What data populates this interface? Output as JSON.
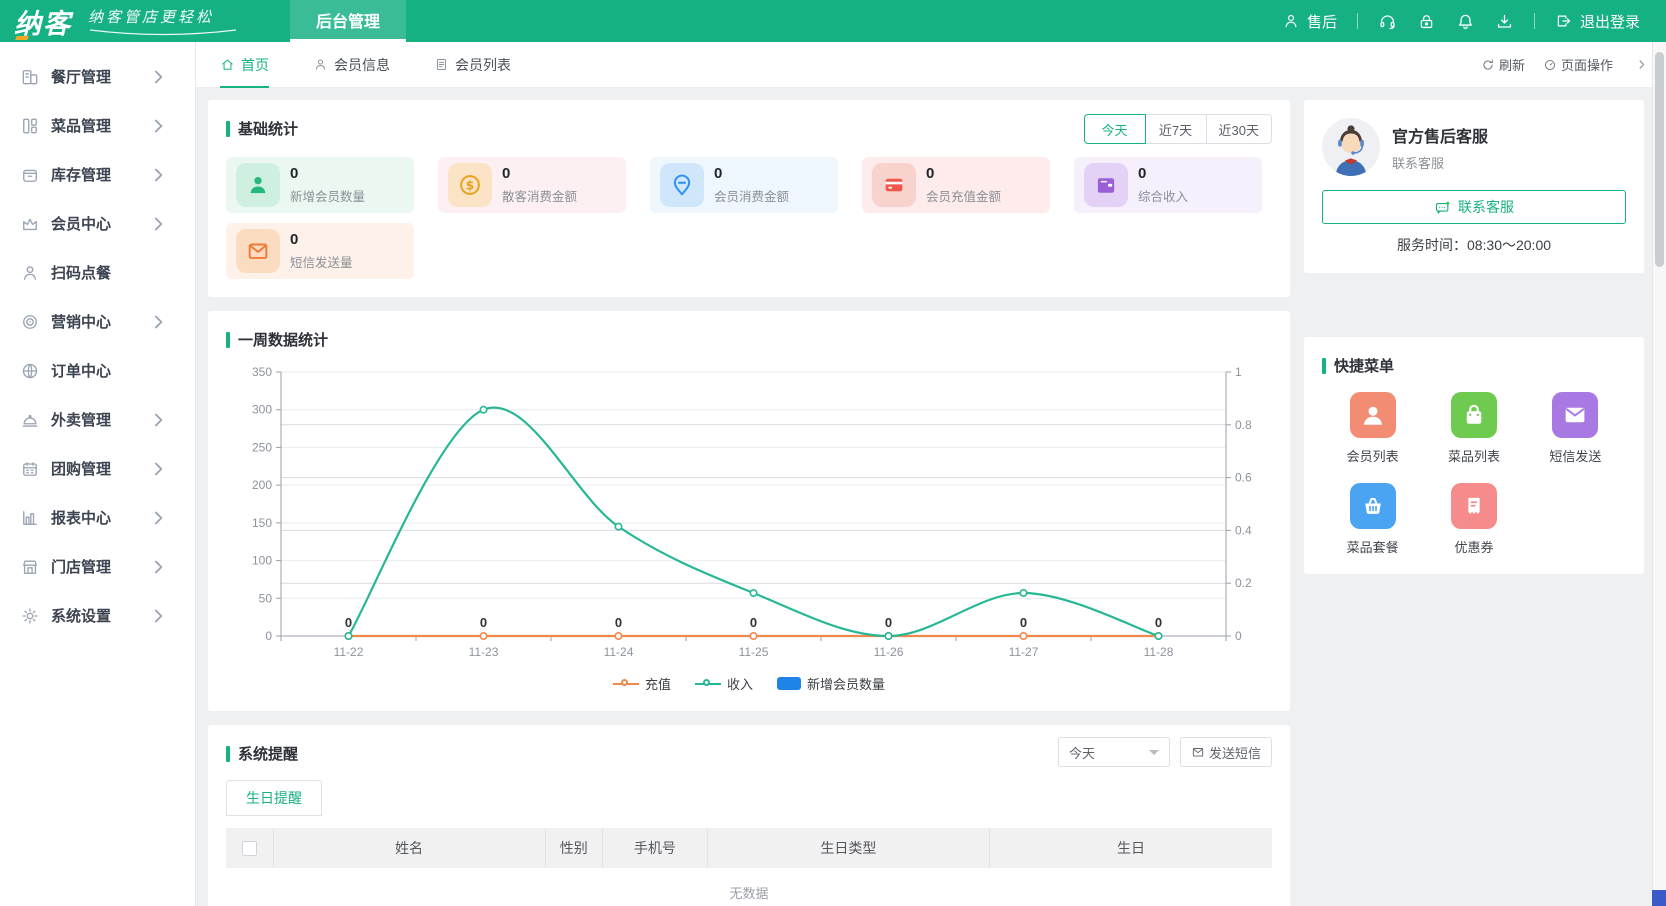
{
  "header": {
    "logo": "纳客",
    "slogan": "纳客管店更轻松",
    "nav_tab": "后台管理",
    "aftersale_label": "售后",
    "logout_label": "退出登录"
  },
  "sidebar": {
    "items": [
      {
        "key": "restaurant",
        "label": "餐厅管理",
        "icon": "restaurant-icon",
        "arrow": true
      },
      {
        "key": "dishes",
        "label": "菜品管理",
        "icon": "dishes-icon",
        "arrow": true
      },
      {
        "key": "inventory",
        "label": "库存管理",
        "icon": "inventory-icon",
        "arrow": true
      },
      {
        "key": "member-center",
        "label": "会员中心",
        "icon": "crown-icon",
        "arrow": true
      },
      {
        "key": "scan-order",
        "label": "扫码点餐",
        "icon": "person-icon",
        "arrow": false
      },
      {
        "key": "marketing",
        "label": "营销中心",
        "icon": "target-icon",
        "arrow": true
      },
      {
        "key": "order-center",
        "label": "订单中心",
        "icon": "globe-icon",
        "arrow": false
      },
      {
        "key": "takeout",
        "label": "外卖管理",
        "icon": "cloche-icon",
        "arrow": true
      },
      {
        "key": "groupbuy",
        "label": "团购管理",
        "icon": "calendar-icon",
        "arrow": true
      },
      {
        "key": "reports",
        "label": "报表中心",
        "icon": "bar-chart-icon",
        "arrow": true
      },
      {
        "key": "stores",
        "label": "门店管理",
        "icon": "storefront-icon",
        "arrow": true
      },
      {
        "key": "settings",
        "label": "系统设置",
        "icon": "gear-icon",
        "arrow": true
      }
    ]
  },
  "tabbar": {
    "tabs": [
      {
        "key": "home",
        "label": "首页",
        "icon": "home-icon",
        "active": true
      },
      {
        "key": "member-info",
        "label": "会员信息",
        "icon": "user-icon",
        "active": false
      },
      {
        "key": "member-list",
        "label": "会员列表",
        "icon": "doc-list-icon",
        "active": false
      }
    ],
    "refresh_label": "刷新",
    "page_ops_label": "页面操作"
  },
  "stats": {
    "title": "基础统计",
    "active_filter": "今天",
    "filters": [
      "今天",
      "近7天",
      "近30天"
    ],
    "cards": [
      {
        "key": "new-members",
        "value": "0",
        "label": "新增会员数量",
        "icon": "member-fill-icon",
        "card_bg": "#ebf8f1",
        "tile_bg": "#cff0e0",
        "color": "#27b87c"
      },
      {
        "key": "walkin-consumption",
        "value": "0",
        "label": "散客消费金额",
        "icon": "coin-icon",
        "card_bg": "#fdf0f3",
        "tile_bg": "#fbe4c6",
        "color": "#e8a21c"
      },
      {
        "key": "member-consumption",
        "value": "0",
        "label": "会员消费金额",
        "icon": "price-tag-icon",
        "card_bg": "#eff7fe",
        "tile_bg": "#cfe6fb",
        "color": "#2a8ff7"
      },
      {
        "key": "member-recharge",
        "value": "0",
        "label": "会员充值金额",
        "icon": "bank-card-icon",
        "card_bg": "#fdeceb",
        "tile_bg": "#f8d2cc",
        "color": "#f0564a"
      },
      {
        "key": "total-income",
        "value": "0",
        "label": "综合收入",
        "icon": "wallet-icon",
        "card_bg": "#f5f0fc",
        "tile_bg": "#e4d2f6",
        "color": "#9a5fd6"
      },
      {
        "key": "sms-sent",
        "value": "0",
        "label": "短信发送量",
        "icon": "envelope-icon",
        "card_bg": "#fdf1e9",
        "tile_bg": "#fbdcc0",
        "color": "#f07a35"
      }
    ]
  },
  "service": {
    "title": "官方售后客服",
    "subtitle": "联系客服",
    "contact_button": "联系客服",
    "hours": "服务时间：08:30～20:00"
  },
  "week_card": {
    "title": "一周数据统计"
  },
  "chart_data": {
    "type": "line",
    "categories": [
      "11-22",
      "11-23",
      "11-24",
      "11-25",
      "11-26",
      "11-27",
      "11-28"
    ],
    "series": [
      {
        "key": "recharge",
        "name": "充值",
        "type": "line",
        "color": "#f0884b",
        "values": [
          0,
          0,
          0,
          0,
          0,
          0,
          0
        ],
        "show_labels": true,
        "smooth": false
      },
      {
        "key": "income",
        "name": "收入",
        "type": "line",
        "color": "#28b795",
        "values": [
          0,
          300,
          145,
          57,
          0,
          57,
          0
        ],
        "show_labels": false,
        "smooth": true
      },
      {
        "key": "new-members",
        "name": "新增会员数量",
        "type": "bar",
        "color": "#1e84e8",
        "values": [
          0,
          0,
          0,
          0,
          0,
          0,
          0
        ]
      }
    ],
    "left_axis": {
      "min": 0,
      "max": 350,
      "step": 50
    },
    "right_axis": {
      "min": 0,
      "max": 1,
      "step": 0.2
    },
    "grid": true,
    "legend_position": "bottom",
    "title": "一周数据统计",
    "xlabel": "",
    "ylabel": ""
  },
  "quick_menu": {
    "title": "快捷菜单",
    "items": [
      {
        "key": "member-list",
        "label": "会员列表",
        "icon": "member-white-icon",
        "color": "#f28d74"
      },
      {
        "key": "dish-list",
        "label": "菜品列表",
        "icon": "shopping-bag-icon",
        "color": "#6ecb50"
      },
      {
        "key": "sms-send",
        "label": "短信发送",
        "icon": "sms-white-icon",
        "color": "#a879e2"
      },
      {
        "key": "dish-combo",
        "label": "菜品套餐",
        "icon": "basket-icon",
        "color": "#4aa4f2"
      },
      {
        "key": "coupon",
        "label": "优惠券",
        "icon": "coupon-icon",
        "color": "#f58b8b"
      }
    ]
  },
  "reminders": {
    "title": "系统提醒",
    "range_value": "今天",
    "send_sms_label": "发送短信",
    "tab_label": "生日提醒",
    "table_headers": [
      "姓名",
      "性别",
      "手机号",
      "生日类型",
      "生日"
    ],
    "empty_text": "无数据"
  }
}
